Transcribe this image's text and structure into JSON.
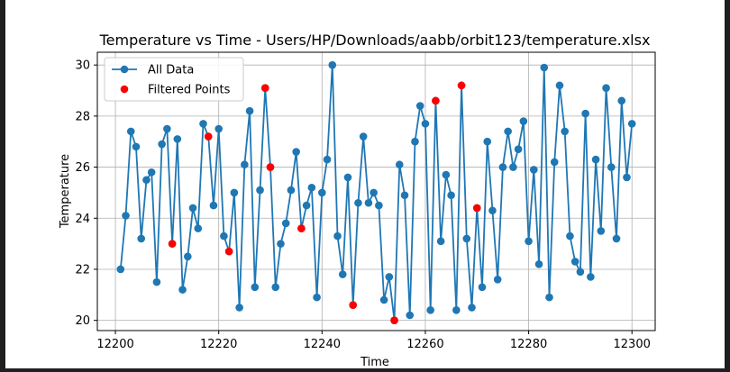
{
  "chart_data": {
    "type": "line",
    "title": "Temperature vs Time - Users/HP/Downloads/aabb/orbit123/temperature.xlsx",
    "xlabel": "Time",
    "ylabel": "Temperature",
    "xlim": [
      12196.5,
      12304.5
    ],
    "ylim": [
      19.6,
      30.5
    ],
    "xticks": [
      12200,
      12220,
      12240,
      12260,
      12280,
      12300
    ],
    "yticks": [
      20,
      22,
      24,
      26,
      28,
      30
    ],
    "grid": true,
    "legend_position": "top-left",
    "series": [
      {
        "name": "All Data",
        "color": "#1f77b4",
        "style": "line-with-markers",
        "x": [
          12201,
          12202,
          12203,
          12204,
          12205,
          12206,
          12207,
          12208,
          12209,
          12210,
          12211,
          12212,
          12213,
          12214,
          12215,
          12216,
          12217,
          12218,
          12219,
          12220,
          12221,
          12222,
          12223,
          12224,
          12225,
          12226,
          12227,
          12228,
          12229,
          12230,
          12231,
          12232,
          12233,
          12234,
          12235,
          12236,
          12237,
          12238,
          12239,
          12240,
          12241,
          12242,
          12243,
          12244,
          12245,
          12246,
          12247,
          12248,
          12249,
          12250,
          12251,
          12252,
          12253,
          12254,
          12255,
          12256,
          12257,
          12258,
          12259,
          12260,
          12261,
          12262,
          12263,
          12264,
          12265,
          12266,
          12267,
          12268,
          12269,
          12270,
          12271,
          12272,
          12273,
          12274,
          12275,
          12276,
          12277,
          12278,
          12279,
          12280,
          12281,
          12282,
          12283,
          12284,
          12285,
          12286,
          12287,
          12288,
          12289,
          12290,
          12291,
          12292,
          12293,
          12294,
          12295,
          12296,
          12297,
          12298,
          12299,
          12300
        ],
        "y": [
          22.0,
          24.1,
          27.4,
          26.8,
          23.2,
          25.5,
          25.8,
          21.5,
          26.9,
          27.5,
          23.0,
          27.1,
          21.2,
          22.5,
          24.4,
          23.6,
          27.7,
          27.2,
          24.5,
          27.5,
          23.3,
          22.7,
          25.0,
          20.5,
          26.1,
          28.2,
          21.3,
          25.1,
          29.1,
          26.0,
          21.3,
          23.0,
          23.8,
          25.1,
          26.6,
          23.6,
          24.5,
          25.2,
          20.9,
          25.0,
          26.3,
          30.0,
          23.3,
          21.8,
          25.6,
          20.6,
          24.6,
          27.2,
          24.6,
          25.0,
          24.5,
          20.8,
          21.7,
          20.0,
          26.1,
          24.9,
          20.2,
          27.0,
          28.4,
          27.7,
          20.4,
          28.6,
          23.1,
          25.7,
          24.9,
          20.4,
          29.2,
          23.2,
          20.5,
          24.4,
          21.3,
          27.0,
          24.3,
          21.6,
          26.0,
          27.4,
          26.0,
          26.7,
          27.8,
          23.1,
          25.9,
          22.2,
          29.9,
          20.9,
          26.2,
          29.2,
          27.4,
          23.3,
          22.3,
          21.9,
          28.1,
          21.7,
          26.3,
          23.5,
          29.1,
          26.0,
          23.2,
          28.6,
          25.6,
          27.7
        ]
      },
      {
        "name": "Filtered Points",
        "color": "#ff0000",
        "style": "markers",
        "x": [
          12211,
          12218,
          12222,
          12229,
          12230,
          12236,
          12246,
          12254,
          12262,
          12267,
          12270
        ],
        "y": [
          23.0,
          27.2,
          22.7,
          29.1,
          26.0,
          23.6,
          20.6,
          20.0,
          28.6,
          29.2,
          24.4
        ]
      }
    ]
  }
}
